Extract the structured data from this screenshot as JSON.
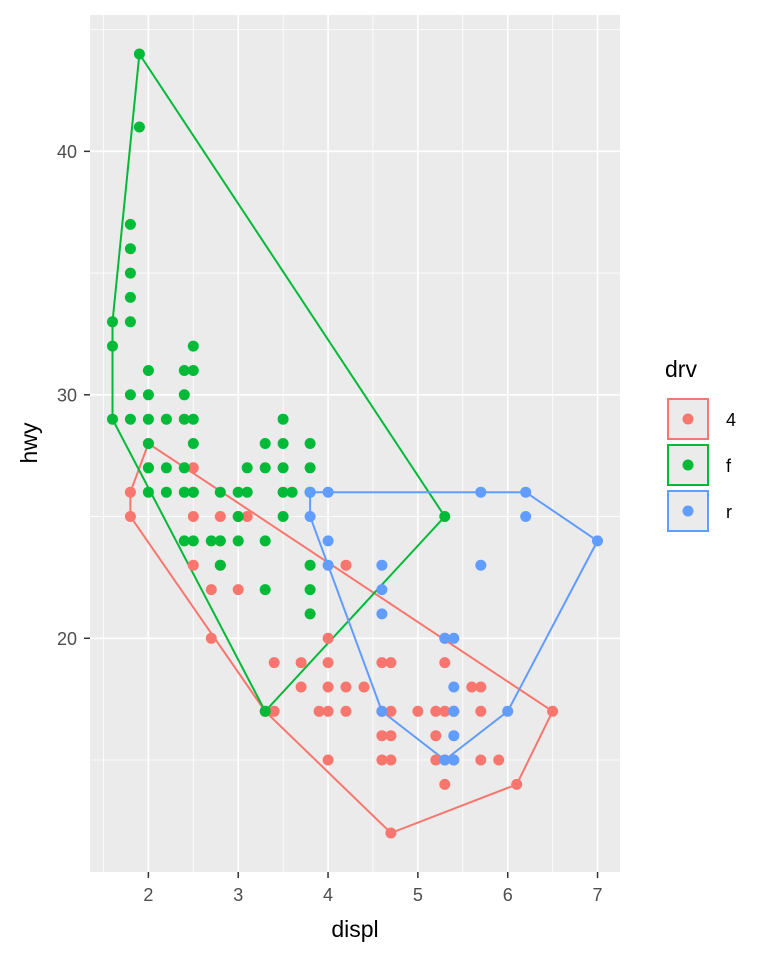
{
  "chart_data": {
    "type": "scatter",
    "xlabel": "displ",
    "ylabel": "hwy",
    "xlim": [
      1.35,
      7.25
    ],
    "ylim": [
      10.4,
      45.6
    ],
    "x_ticks": [
      2,
      3,
      4,
      5,
      6,
      7
    ],
    "y_ticks": [
      20,
      30,
      40
    ],
    "grid": true,
    "legend": {
      "title": "drv",
      "position": "right",
      "entries": [
        "4",
        "f",
        "r"
      ]
    },
    "series": [
      {
        "name": "4",
        "color": "#F8766D",
        "points": [
          [
            1.8,
            26
          ],
          [
            1.8,
            25
          ],
          [
            2.0,
            28
          ],
          [
            2.0,
            27
          ],
          [
            2.5,
            27
          ],
          [
            2.5,
            26
          ],
          [
            2.5,
            25
          ],
          [
            2.5,
            23
          ],
          [
            2.7,
            22
          ],
          [
            2.7,
            20
          ],
          [
            2.8,
            25
          ],
          [
            2.8,
            24
          ],
          [
            2.8,
            23
          ],
          [
            3.0,
            25
          ],
          [
            3.0,
            22
          ],
          [
            3.1,
            25
          ],
          [
            3.3,
            17
          ],
          [
            3.4,
            19
          ],
          [
            3.4,
            17
          ],
          [
            3.7,
            19
          ],
          [
            3.7,
            18
          ],
          [
            3.9,
            17
          ],
          [
            4.0,
            20
          ],
          [
            4.0,
            19
          ],
          [
            4.0,
            18
          ],
          [
            4.0,
            17
          ],
          [
            4.0,
            15
          ],
          [
            4.2,
            23
          ],
          [
            4.2,
            18
          ],
          [
            4.2,
            17
          ],
          [
            4.4,
            18
          ],
          [
            4.6,
            19
          ],
          [
            4.6,
            17
          ],
          [
            4.6,
            16
          ],
          [
            4.6,
            15
          ],
          [
            4.7,
            19
          ],
          [
            4.7,
            17
          ],
          [
            4.7,
            16
          ],
          [
            4.7,
            15
          ],
          [
            4.7,
            12
          ],
          [
            5.0,
            17
          ],
          [
            5.2,
            17
          ],
          [
            5.2,
            16
          ],
          [
            5.2,
            15
          ],
          [
            5.3,
            20
          ],
          [
            5.3,
            19
          ],
          [
            5.3,
            17
          ],
          [
            5.3,
            15
          ],
          [
            5.3,
            14
          ],
          [
            5.4,
            17
          ],
          [
            5.4,
            15
          ],
          [
            5.6,
            18
          ],
          [
            5.7,
            18
          ],
          [
            5.7,
            17
          ],
          [
            5.7,
            15
          ],
          [
            5.9,
            15
          ],
          [
            6.1,
            14
          ],
          [
            6.5,
            17
          ]
        ],
        "hull": [
          [
            1.8,
            25
          ],
          [
            1.8,
            26
          ],
          [
            2.0,
            28
          ],
          [
            6.5,
            17
          ],
          [
            6.1,
            14
          ],
          [
            4.7,
            12
          ],
          [
            3.3,
            17
          ]
        ]
      },
      {
        "name": "f",
        "color": "#00BA38",
        "points": [
          [
            1.6,
            33
          ],
          [
            1.6,
            32
          ],
          [
            1.6,
            29
          ],
          [
            1.8,
            37
          ],
          [
            1.8,
            36
          ],
          [
            1.8,
            35
          ],
          [
            1.8,
            34
          ],
          [
            1.8,
            33
          ],
          [
            1.8,
            30
          ],
          [
            1.8,
            29
          ],
          [
            1.9,
            44
          ],
          [
            1.9,
            41
          ],
          [
            2.0,
            31
          ],
          [
            2.0,
            30
          ],
          [
            2.0,
            29
          ],
          [
            2.0,
            28
          ],
          [
            2.0,
            27
          ],
          [
            2.0,
            26
          ],
          [
            2.2,
            29
          ],
          [
            2.2,
            27
          ],
          [
            2.2,
            26
          ],
          [
            2.4,
            31
          ],
          [
            2.4,
            30
          ],
          [
            2.4,
            29
          ],
          [
            2.4,
            27
          ],
          [
            2.4,
            26
          ],
          [
            2.4,
            24
          ],
          [
            2.5,
            32
          ],
          [
            2.5,
            31
          ],
          [
            2.5,
            29
          ],
          [
            2.5,
            28
          ],
          [
            2.5,
            26
          ],
          [
            2.5,
            24
          ],
          [
            2.7,
            24
          ],
          [
            2.8,
            26
          ],
          [
            2.8,
            24
          ],
          [
            2.8,
            23
          ],
          [
            3.0,
            26
          ],
          [
            3.0,
            25
          ],
          [
            3.0,
            24
          ],
          [
            3.1,
            27
          ],
          [
            3.1,
            26
          ],
          [
            3.3,
            28
          ],
          [
            3.3,
            27
          ],
          [
            3.3,
            24
          ],
          [
            3.3,
            22
          ],
          [
            3.3,
            17
          ],
          [
            3.5,
            29
          ],
          [
            3.5,
            28
          ],
          [
            3.5,
            27
          ],
          [
            3.5,
            26
          ],
          [
            3.5,
            25
          ],
          [
            3.6,
            26
          ],
          [
            3.8,
            28
          ],
          [
            3.8,
            27
          ],
          [
            3.8,
            26
          ],
          [
            3.8,
            23
          ],
          [
            3.8,
            22
          ],
          [
            3.8,
            21
          ],
          [
            5.3,
            25
          ]
        ],
        "hull": [
          [
            1.9,
            44
          ],
          [
            5.3,
            25
          ],
          [
            3.3,
            17
          ],
          [
            1.6,
            29
          ],
          [
            1.6,
            33
          ]
        ]
      },
      {
        "name": "r",
        "color": "#619CFF",
        "points": [
          [
            3.8,
            26
          ],
          [
            3.8,
            25
          ],
          [
            4.0,
            26
          ],
          [
            4.0,
            24
          ],
          [
            4.0,
            23
          ],
          [
            4.6,
            23
          ],
          [
            4.6,
            22
          ],
          [
            4.6,
            21
          ],
          [
            4.6,
            17
          ],
          [
            5.3,
            20
          ],
          [
            5.3,
            15
          ],
          [
            5.4,
            20
          ],
          [
            5.4,
            18
          ],
          [
            5.4,
            17
          ],
          [
            5.4,
            16
          ],
          [
            5.4,
            15
          ],
          [
            5.7,
            26
          ],
          [
            5.7,
            23
          ],
          [
            6.0,
            17
          ],
          [
            6.2,
            26
          ],
          [
            6.2,
            25
          ],
          [
            7.0,
            24
          ]
        ],
        "hull": [
          [
            3.8,
            25
          ],
          [
            3.8,
            26
          ],
          [
            6.2,
            26
          ],
          [
            7.0,
            24
          ],
          [
            6.0,
            17
          ],
          [
            5.3,
            15
          ],
          [
            4.6,
            17
          ]
        ]
      }
    ]
  }
}
